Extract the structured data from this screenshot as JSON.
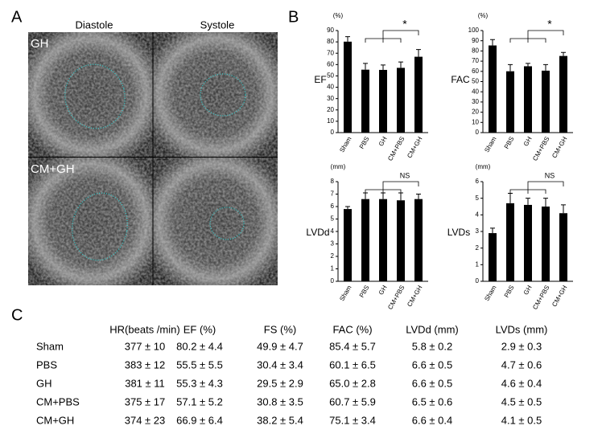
{
  "panels": {
    "a": "A",
    "b": "B",
    "c": "C"
  },
  "images": {
    "columns": [
      "Diastole",
      "Systole"
    ],
    "rows": [
      "GH",
      "CM+GH"
    ]
  },
  "chart_data": [
    {
      "type": "bar",
      "unit": "(%)",
      "ylabel": "EF",
      "categories": [
        "Sham",
        "PBS",
        "GH",
        "CM+PBS",
        "CM+GH"
      ],
      "values": [
        80.2,
        55.5,
        55.3,
        57.1,
        66.9
      ],
      "errors": [
        4.4,
        5.5,
        4.3,
        5.2,
        6.4
      ],
      "ylim": [
        0,
        90
      ],
      "yticks": [
        0,
        10,
        20,
        30,
        40,
        50,
        60,
        70,
        80,
        90
      ],
      "color": "#000000",
      "annotation": "*"
    },
    {
      "type": "bar",
      "unit": "(%)",
      "ylabel": "FAC",
      "categories": [
        "Sham",
        "PBS",
        "GH",
        "CM+PBS",
        "CM+GH"
      ],
      "values": [
        85.4,
        60.1,
        65.0,
        60.7,
        75.1
      ],
      "errors": [
        5.7,
        6.5,
        2.8,
        5.9,
        3.4
      ],
      "ylim": [
        0,
        100
      ],
      "yticks": [
        0,
        10,
        20,
        30,
        40,
        50,
        60,
        70,
        80,
        90,
        100
      ],
      "color": "#000000",
      "annotation": "*"
    },
    {
      "type": "bar",
      "unit": "(mm)",
      "ylabel": "LVDd",
      "categories": [
        "Sham",
        "PBS",
        "GH",
        "CM+PBS",
        "CM+GH"
      ],
      "values": [
        5.8,
        6.6,
        6.6,
        6.5,
        6.6
      ],
      "errors": [
        0.2,
        0.5,
        0.5,
        0.6,
        0.4
      ],
      "ylim": [
        0,
        8
      ],
      "yticks": [
        0,
        1,
        2,
        3,
        4,
        5,
        6,
        7,
        8
      ],
      "color": "#000000",
      "annotation": "NS"
    },
    {
      "type": "bar",
      "unit": "(mm)",
      "ylabel": "LVDs",
      "categories": [
        "Sham",
        "PBS",
        "GH",
        "CM+PBS",
        "CM+GH"
      ],
      "values": [
        2.9,
        4.7,
        4.6,
        4.5,
        4.1
      ],
      "errors": [
        0.3,
        0.6,
        0.4,
        0.5,
        0.5
      ],
      "ylim": [
        0,
        6
      ],
      "yticks": [
        0,
        1,
        2,
        3,
        4,
        5,
        6
      ],
      "color": "#000000",
      "annotation": "NS"
    }
  ],
  "table": {
    "columns": [
      "HR(beats /min)",
      "EF (%)",
      "FS (%)",
      "FAC (%)",
      "LVDd (mm)",
      "LVDs (mm)"
    ],
    "rows": [
      {
        "label": "Sham",
        "cells": [
          "377 ± 10",
          "80.2 ± 4.4",
          "49.9 ± 4.7",
          "85.4 ± 5.7",
          "5.8 ± 0.2",
          "2.9 ± 0.3"
        ]
      },
      {
        "label": "PBS",
        "cells": [
          "383 ± 12",
          "55.5 ± 5.5",
          "30.4 ± 3.4",
          "60.1 ± 6.5",
          "6.6 ± 0.5",
          "4.7 ± 0.6"
        ]
      },
      {
        "label": "GH",
        "cells": [
          "381 ± 11",
          "55.3 ± 4.3",
          "29.5 ± 2.9",
          "65.0 ± 2.8",
          "6.6 ± 0.5",
          "4.6 ± 0.4"
        ]
      },
      {
        "label": "CM+PBS",
        "cells": [
          "375 ± 17",
          "57.1 ± 5.2",
          "30.8 ± 3.5",
          "60.7 ± 5.9",
          "6.5 ± 0.6",
          "4.5 ± 0.5"
        ]
      },
      {
        "label": "CM+GH",
        "cells": [
          "374 ± 23",
          "66.9 ± 6.4",
          "38.2 ± 5.4",
          "75.1 ± 3.4",
          "6.6 ± 0.4",
          "4.1 ± 0.5"
        ]
      }
    ]
  }
}
